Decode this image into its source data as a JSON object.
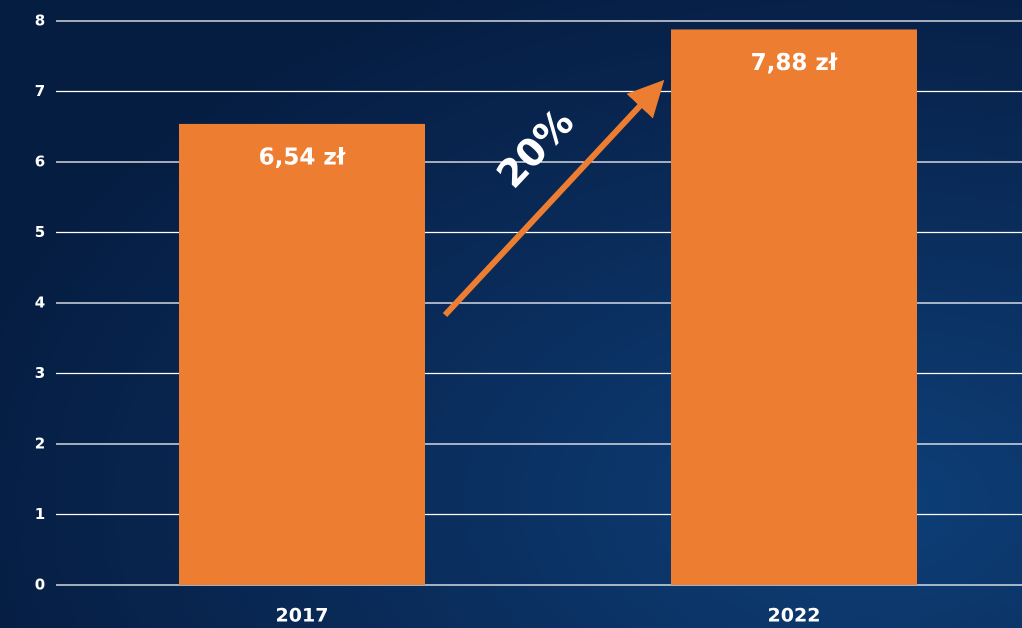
{
  "chart_data": {
    "type": "bar",
    "categories": [
      "2017",
      "2022"
    ],
    "values": [
      6.54,
      7.88
    ],
    "value_labels": [
      "6,54 zł",
      "7,88 zł"
    ],
    "color": "#ed7d31",
    "ylim": [
      0,
      8
    ],
    "yticks": [
      0,
      1,
      2,
      3,
      4,
      5,
      6,
      7,
      8
    ],
    "grid": true,
    "annotation": "20%"
  }
}
